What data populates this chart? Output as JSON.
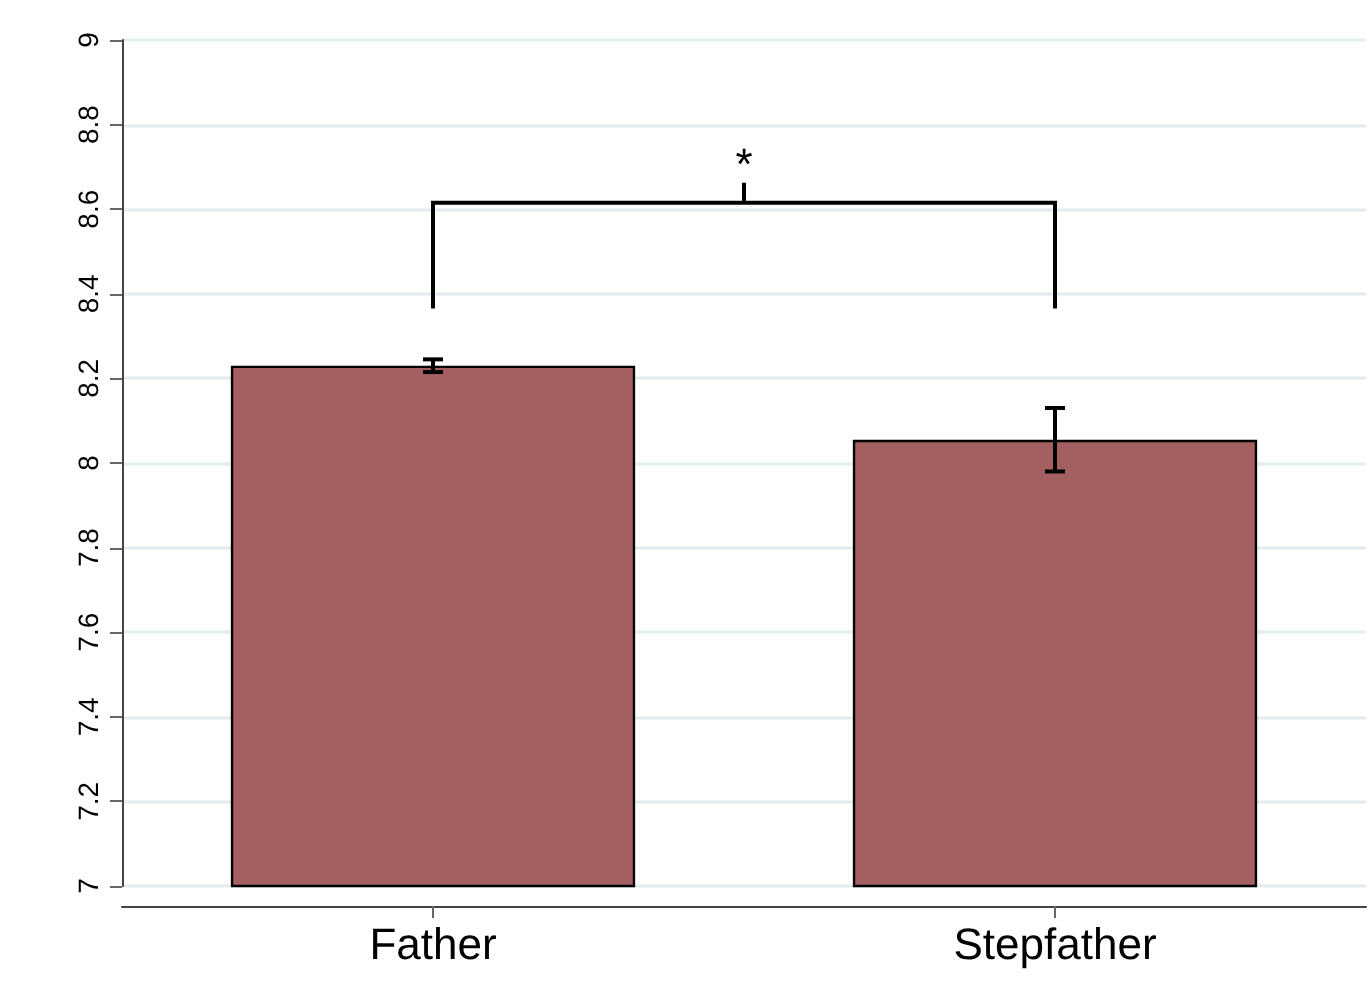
{
  "chart_data": {
    "type": "bar",
    "categories": [
      "Father",
      "Stepfather"
    ],
    "values": [
      8.23,
      8.055
    ],
    "errors": [
      0.015,
      [
        7.98,
        8.13
      ]
    ],
    "color": "#a46060",
    "ylim": [
      7,
      9
    ],
    "yticks": [
      7,
      7.2,
      7.4,
      7.6,
      7.8,
      8,
      8.2,
      8.4,
      8.6,
      8.8,
      9
    ],
    "grid": "y",
    "annotations": [
      "*"
    ]
  }
}
